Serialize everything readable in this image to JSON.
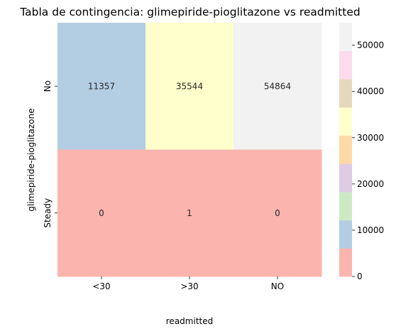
{
  "chart_data": {
    "type": "heatmap",
    "title": "Tabla de contingencia: glimepiride-pioglitazone vs readmitted",
    "xlabel": "readmitted",
    "ylabel": "glimepiride-pioglitazone",
    "x_categories": [
      "<30",
      ">30",
      "NO"
    ],
    "y_categories": [
      "No",
      "Steady"
    ],
    "values": [
      [
        11357,
        35544,
        54864
      ],
      [
        0,
        1,
        0
      ]
    ],
    "colormap": "Pastel1",
    "colorbar": {
      "vmin": 0,
      "vmax": 54864,
      "ticks": [
        "0",
        "10000",
        "20000",
        "30000",
        "40000",
        "50000"
      ],
      "tick_values": [
        0,
        10000,
        20000,
        30000,
        40000,
        50000
      ],
      "colors": [
        "#fbb4ae",
        "#b3cde3",
        "#ccebc5",
        "#decbe4",
        "#fed9a6",
        "#ffffcc",
        "#e5d8bd",
        "#fddaec",
        "#f2f2f2"
      ]
    },
    "grid": false,
    "legend": "colorbar-right"
  }
}
